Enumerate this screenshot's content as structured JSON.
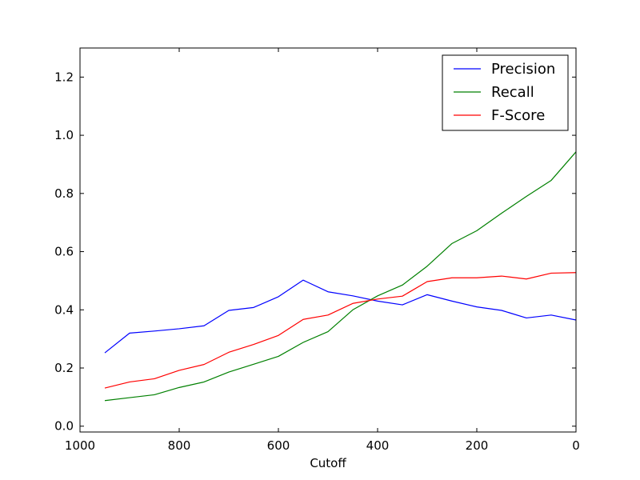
{
  "chart_data": {
    "type": "line",
    "xlabel": "Cutoff",
    "ylabel": "",
    "title": "",
    "xlim": [
      1000,
      0
    ],
    "ylim": [
      -0.02,
      1.3
    ],
    "x_ticks": [
      1000,
      800,
      600,
      400,
      200,
      0
    ],
    "x_tick_labels": [
      "1000",
      "800",
      "600",
      "400",
      "200",
      "0"
    ],
    "y_ticks": [
      0.0,
      0.2,
      0.4,
      0.6,
      0.8,
      1.0,
      1.2
    ],
    "y_tick_labels": [
      "0.0",
      "0.2",
      "0.4",
      "0.6",
      "0.8",
      "1.0",
      "1.2"
    ],
    "grid": false,
    "legend_position": "top-right",
    "x": [
      950,
      900,
      850,
      800,
      750,
      700,
      650,
      600,
      550,
      500,
      450,
      400,
      350,
      300,
      250,
      200,
      150,
      100,
      50,
      0
    ],
    "series": [
      {
        "name": "Precision",
        "color": "#0000ff",
        "values": [
          0.252,
          0.32,
          0.327,
          0.335,
          0.345,
          0.398,
          0.408,
          0.445,
          0.502,
          0.462,
          0.448,
          0.43,
          0.417,
          0.452,
          0.43,
          0.41,
          0.398,
          0.372,
          0.382,
          0.365
        ]
      },
      {
        "name": "Recall",
        "color": "#008000",
        "values": [
          0.088,
          0.098,
          0.108,
          0.133,
          0.152,
          0.186,
          0.213,
          0.24,
          0.288,
          0.325,
          0.4,
          0.448,
          0.485,
          0.55,
          0.628,
          0.672,
          0.732,
          0.79,
          0.845,
          0.943
        ]
      },
      {
        "name": "F-Score",
        "color": "#ff0000",
        "values": [
          0.131,
          0.152,
          0.163,
          0.192,
          0.212,
          0.254,
          0.281,
          0.312,
          0.367,
          0.382,
          0.422,
          0.437,
          0.447,
          0.497,
          0.51,
          0.51,
          0.516,
          0.506,
          0.526,
          0.528
        ]
      }
    ]
  }
}
